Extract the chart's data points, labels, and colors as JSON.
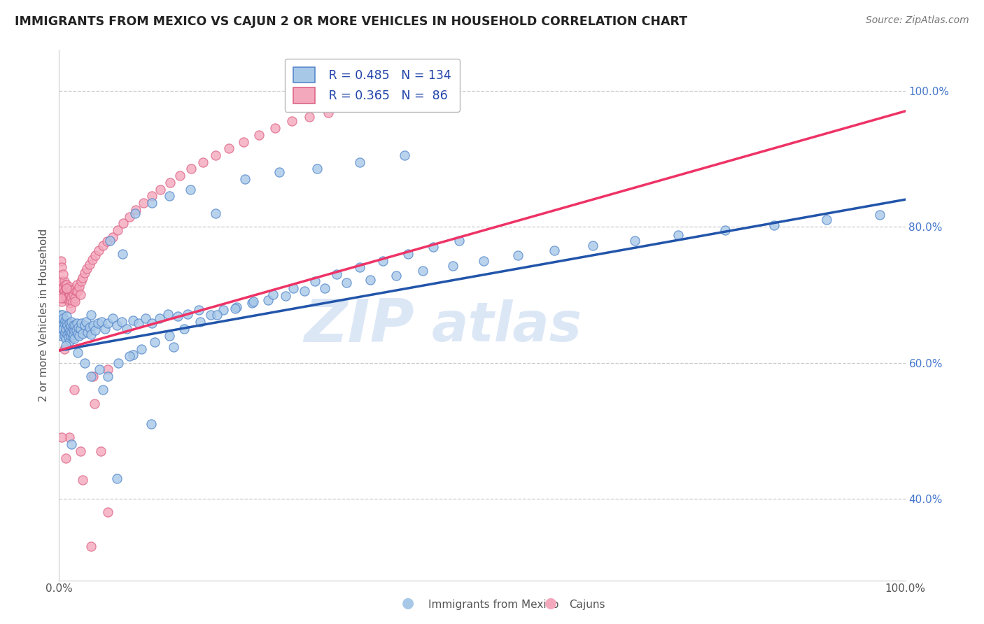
{
  "title": "IMMIGRANTS FROM MEXICO VS CAJUN 2 OR MORE VEHICLES IN HOUSEHOLD CORRELATION CHART",
  "source": "Source: ZipAtlas.com",
  "ylabel": "2 or more Vehicles in Household",
  "legend_blue_R": "0.485",
  "legend_blue_N": "134",
  "legend_pink_R": "0.365",
  "legend_pink_N": " 86",
  "legend_blue_label": "Immigrants from Mexico",
  "legend_pink_label": "Cajuns",
  "blue_dot_color": "#a8c8e8",
  "blue_dot_edge": "#5588cc",
  "pink_dot_color": "#f4a8bc",
  "pink_dot_edge": "#dd6688",
  "blue_line_color": "#2255aa",
  "pink_line_color": "#ee3366",
  "watermark_color": "#c5d8f0",
  "grid_color": "#cccccc",
  "background_color": "#ffffff",
  "dot_size": 90,
  "xlim": [
    0.0,
    1.0
  ],
  "ylim": [
    0.28,
    1.06
  ],
  "blue_line": [
    0.0,
    0.618,
    1.0,
    0.84
  ],
  "pink_line": [
    0.0,
    0.618,
    1.0,
    0.97
  ],
  "blue_x": [
    0.001,
    0.002,
    0.002,
    0.003,
    0.003,
    0.004,
    0.004,
    0.005,
    0.005,
    0.006,
    0.006,
    0.007,
    0.007,
    0.008,
    0.008,
    0.009,
    0.009,
    0.01,
    0.01,
    0.011,
    0.011,
    0.012,
    0.012,
    0.013,
    0.013,
    0.014,
    0.014,
    0.015,
    0.015,
    0.016,
    0.016,
    0.017,
    0.017,
    0.018,
    0.018,
    0.019,
    0.02,
    0.021,
    0.022,
    0.023,
    0.024,
    0.025,
    0.026,
    0.028,
    0.03,
    0.032,
    0.034,
    0.036,
    0.038,
    0.04,
    0.043,
    0.046,
    0.05,
    0.054,
    0.058,
    0.063,
    0.068,
    0.074,
    0.08,
    0.087,
    0.094,
    0.102,
    0.11,
    0.119,
    0.129,
    0.14,
    0.152,
    0.165,
    0.179,
    0.194,
    0.21,
    0.228,
    0.247,
    0.268,
    0.29,
    0.314,
    0.34,
    0.368,
    0.398,
    0.43,
    0.465,
    0.502,
    0.542,
    0.585,
    0.631,
    0.68,
    0.732,
    0.787,
    0.845,
    0.907,
    0.97,
    0.06,
    0.075,
    0.09,
    0.11,
    0.13,
    0.155,
    0.185,
    0.22,
    0.26,
    0.305,
    0.355,
    0.408,
    0.038,
    0.052,
    0.068,
    0.087,
    0.109,
    0.135,
    0.008,
    0.015,
    0.022,
    0.03,
    0.038,
    0.048,
    0.058,
    0.07,
    0.083,
    0.097,
    0.113,
    0.13,
    0.148,
    0.167,
    0.187,
    0.208,
    0.23,
    0.253,
    0.277,
    0.302,
    0.328,
    0.355,
    0.383,
    0.412,
    0.442,
    0.473
  ],
  "blue_y": [
    0.66,
    0.65,
    0.67,
    0.64,
    0.66,
    0.655,
    0.67,
    0.65,
    0.665,
    0.64,
    0.658,
    0.645,
    0.662,
    0.635,
    0.65,
    0.658,
    0.668,
    0.642,
    0.655,
    0.638,
    0.65,
    0.645,
    0.658,
    0.632,
    0.648,
    0.64,
    0.655,
    0.645,
    0.66,
    0.638,
    0.65,
    0.642,
    0.655,
    0.635,
    0.648,
    0.655,
    0.648,
    0.658,
    0.643,
    0.652,
    0.64,
    0.65,
    0.658,
    0.643,
    0.655,
    0.66,
    0.645,
    0.652,
    0.642,
    0.655,
    0.648,
    0.658,
    0.66,
    0.65,
    0.658,
    0.665,
    0.655,
    0.66,
    0.65,
    0.662,
    0.658,
    0.665,
    0.658,
    0.665,
    0.672,
    0.668,
    0.672,
    0.678,
    0.67,
    0.678,
    0.682,
    0.688,
    0.692,
    0.698,
    0.705,
    0.71,
    0.718,
    0.722,
    0.728,
    0.735,
    0.742,
    0.75,
    0.758,
    0.765,
    0.772,
    0.78,
    0.788,
    0.795,
    0.802,
    0.81,
    0.818,
    0.78,
    0.76,
    0.82,
    0.835,
    0.845,
    0.855,
    0.82,
    0.87,
    0.88,
    0.885,
    0.895,
    0.905,
    0.67,
    0.56,
    0.43,
    0.612,
    0.51,
    0.623,
    0.625,
    0.48,
    0.615,
    0.6,
    0.58,
    0.59,
    0.58,
    0.6,
    0.61,
    0.62,
    0.63,
    0.64,
    0.65,
    0.66,
    0.67,
    0.68,
    0.69,
    0.7,
    0.71,
    0.72,
    0.73,
    0.74,
    0.75,
    0.76,
    0.77,
    0.78
  ],
  "pink_x": [
    0.001,
    0.002,
    0.002,
    0.003,
    0.003,
    0.004,
    0.004,
    0.005,
    0.005,
    0.006,
    0.006,
    0.007,
    0.007,
    0.008,
    0.008,
    0.009,
    0.009,
    0.01,
    0.01,
    0.011,
    0.011,
    0.012,
    0.012,
    0.013,
    0.013,
    0.014,
    0.014,
    0.015,
    0.015,
    0.016,
    0.017,
    0.018,
    0.019,
    0.02,
    0.021,
    0.022,
    0.024,
    0.026,
    0.028,
    0.03,
    0.033,
    0.036,
    0.039,
    0.043,
    0.047,
    0.052,
    0.057,
    0.063,
    0.069,
    0.076,
    0.083,
    0.091,
    0.1,
    0.11,
    0.12,
    0.131,
    0.143,
    0.156,
    0.17,
    0.185,
    0.201,
    0.218,
    0.236,
    0.255,
    0.275,
    0.296,
    0.318,
    0.002,
    0.005,
    0.009,
    0.014,
    0.019,
    0.025,
    0.032,
    0.04,
    0.049,
    0.058,
    0.028,
    0.042,
    0.058,
    0.038,
    0.025,
    0.012,
    0.018,
    0.006,
    0.003,
    0.008
  ],
  "pink_y": [
    0.66,
    0.75,
    0.71,
    0.74,
    0.69,
    0.72,
    0.7,
    0.71,
    0.695,
    0.705,
    0.72,
    0.7,
    0.715,
    0.695,
    0.71,
    0.7,
    0.715,
    0.695,
    0.708,
    0.692,
    0.705,
    0.698,
    0.712,
    0.688,
    0.7,
    0.692,
    0.706,
    0.696,
    0.708,
    0.69,
    0.7,
    0.708,
    0.695,
    0.705,
    0.715,
    0.705,
    0.712,
    0.72,
    0.725,
    0.732,
    0.738,
    0.745,
    0.752,
    0.758,
    0.765,
    0.772,
    0.778,
    0.785,
    0.795,
    0.805,
    0.815,
    0.825,
    0.835,
    0.845,
    0.855,
    0.865,
    0.875,
    0.885,
    0.895,
    0.905,
    0.915,
    0.925,
    0.935,
    0.945,
    0.955,
    0.962,
    0.968,
    0.695,
    0.73,
    0.71,
    0.68,
    0.69,
    0.7,
    0.648,
    0.58,
    0.47,
    0.59,
    0.428,
    0.54,
    0.38,
    0.33,
    0.47,
    0.49,
    0.56,
    0.62,
    0.49,
    0.46
  ]
}
